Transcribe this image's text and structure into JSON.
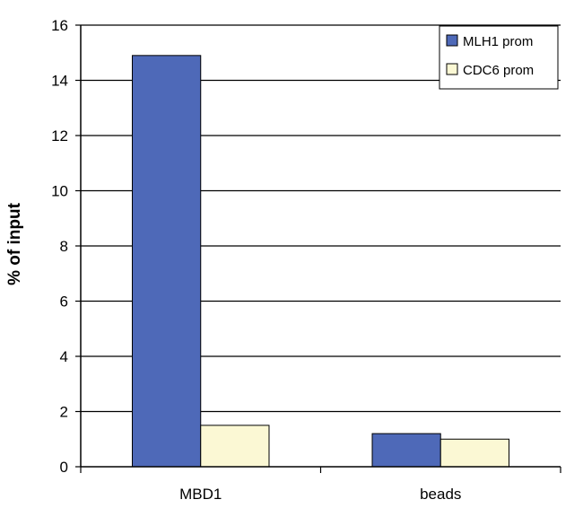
{
  "chart_data": {
    "type": "bar",
    "title": "",
    "xlabel": "",
    "ylabel": "% of input",
    "ylim": [
      0,
      16
    ],
    "yticks": [
      0,
      2,
      4,
      6,
      8,
      10,
      12,
      14,
      16
    ],
    "categories": [
      "MBD1",
      "beads"
    ],
    "series": [
      {
        "name": "MLH1 prom",
        "values": [
          14.9,
          1.2
        ],
        "color": "#4e69b8"
      },
      {
        "name": "CDC6 prom",
        "values": [
          1.5,
          1.0
        ],
        "color": "#fbf8d4"
      }
    ],
    "grid": true,
    "legend": "top-right"
  }
}
